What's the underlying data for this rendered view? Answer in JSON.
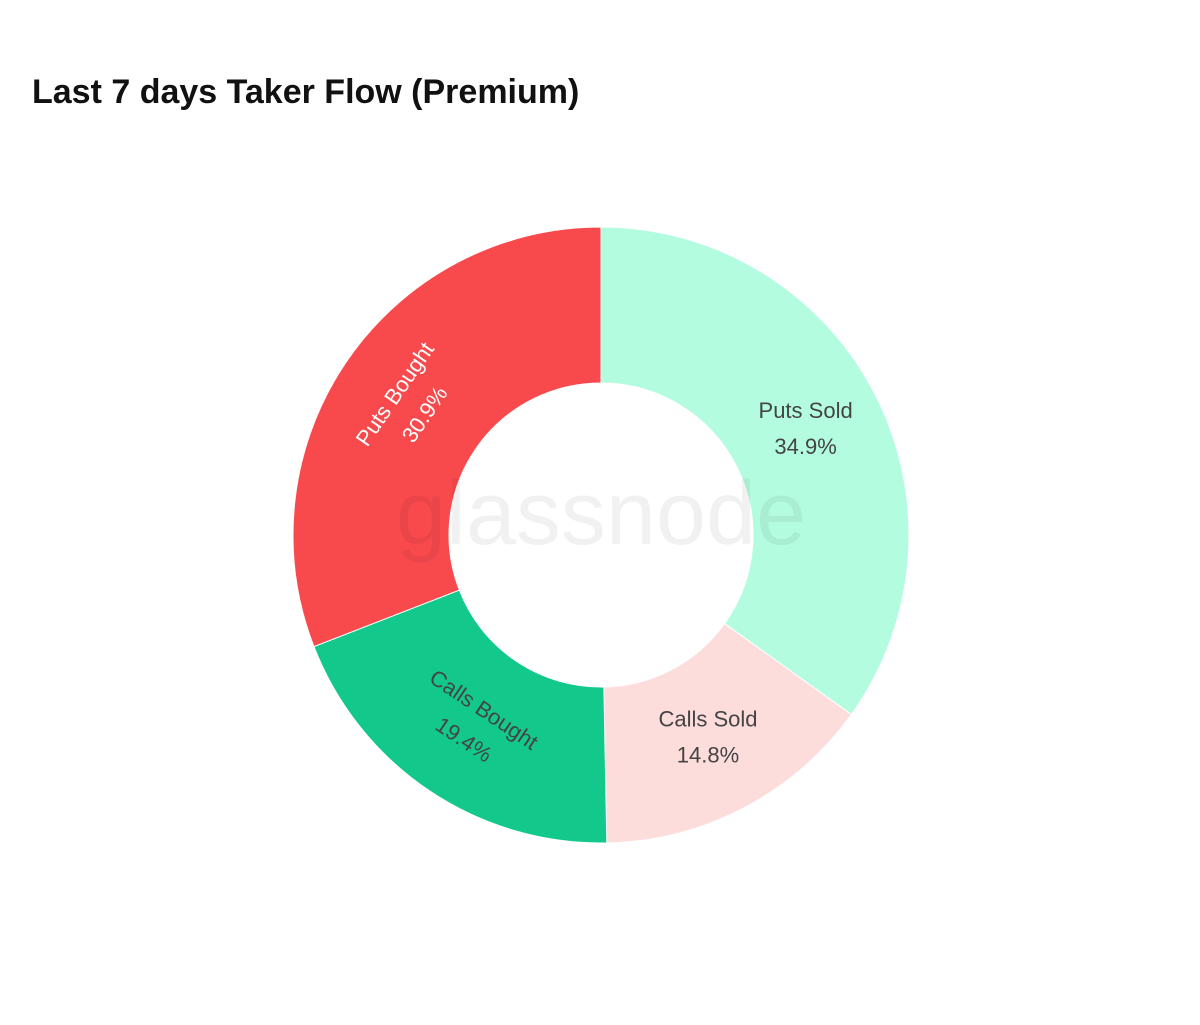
{
  "chart_data": {
    "type": "donut",
    "title": "Last 7 days Taker Flow (Premium)",
    "watermark": "glassnode",
    "categories": [
      "Puts Sold",
      "Calls Sold",
      "Calls Bought",
      "Puts Bought"
    ],
    "values": [
      34.9,
      14.8,
      19.4,
      30.9
    ],
    "value_labels": [
      "34.9%",
      "14.8%",
      "19.4%",
      "30.9%"
    ],
    "colors": [
      "#b3fce0",
      "#fddcdc",
      "#12c98b",
      "#f84a4d"
    ]
  }
}
